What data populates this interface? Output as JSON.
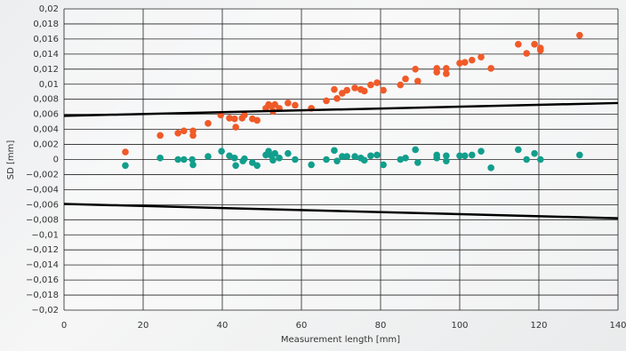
{
  "chart_data": {
    "type": "scatter",
    "xlabel": "Measurement length [mm]",
    "ylabel": "SD [mm]",
    "xlim": [
      0,
      140
    ],
    "xticks": [
      0,
      20,
      40,
      60,
      80,
      100,
      120,
      140
    ],
    "ylim": [
      -0.02,
      0.02
    ],
    "yticks": [
      {
        "value": 0.02,
        "label": "0,02"
      },
      {
        "value": 0.018,
        "label": "0,018"
      },
      {
        "value": 0.016,
        "label": "0,016"
      },
      {
        "value": 0.014,
        "label": "0,014"
      },
      {
        "value": 0.012,
        "label": "0,012"
      },
      {
        "value": 0.01,
        "label": "0,01"
      },
      {
        "value": 0.008,
        "label": "0,008"
      },
      {
        "value": 0.006,
        "label": "0,006"
      },
      {
        "value": 0.004,
        "label": "0,004"
      },
      {
        "value": 0.002,
        "label": "0,002"
      },
      0,
      {
        "value": -0.002,
        "label": "−0,002"
      },
      {
        "value": -0.004,
        "label": "−0,004"
      },
      {
        "value": -0.006,
        "label": "−0,006"
      },
      {
        "value": -0.008,
        "label": "−0,008"
      },
      {
        "value": -0.01,
        "label": "−0,01"
      },
      {
        "value": -0.012,
        "label": "−0,012"
      },
      {
        "value": -0.014,
        "label": "−0,014"
      },
      {
        "value": -0.016,
        "label": "−0,016"
      },
      {
        "value": -0.018,
        "label": "−0,018"
      },
      {
        "value": -0.02,
        "label": "−0,02"
      }
    ],
    "grid": true,
    "series": [
      {
        "color": "#f05a28",
        "style": "points",
        "x": [
          15.5,
          24.3,
          28.8,
          30.3,
          32.6,
          32.6,
          36.4,
          39.6,
          41.8,
          43.1,
          43.4,
          45,
          45.6,
          47.6,
          48.8,
          51,
          51.7,
          52.4,
          52.8,
          53.3,
          54.4,
          56.6,
          58.4,
          62.5,
          66.3,
          68.3,
          69,
          70.3,
          71.5,
          73.5,
          75,
          75.9,
          77.5,
          79.1,
          80.7,
          85,
          86.3,
          88.8,
          89.4,
          94.2,
          94.2,
          96.6,
          96.6,
          100,
          101.3,
          103.1,
          105.4,
          107.9,
          114.8,
          116.9,
          118.9,
          120.4,
          120.4,
          130.3
        ],
        "values": [
          0.001,
          0.0032,
          0.0035,
          0.0038,
          0.0038,
          0.0032,
          0.0048,
          0.0059,
          0.0055,
          0.0054,
          0.0043,
          0.0055,
          0.0059,
          0.0054,
          0.0052,
          0.0068,
          0.0073,
          0.0071,
          0.0064,
          0.0073,
          0.0068,
          0.0075,
          0.0072,
          0.0068,
          0.0078,
          0.0093,
          0.0081,
          0.0088,
          0.0092,
          0.0095,
          0.0093,
          0.0091,
          0.0099,
          0.0102,
          0.0092,
          0.0099,
          0.0107,
          0.012,
          0.0104,
          0.0121,
          0.0116,
          0.0121,
          0.0114,
          0.0128,
          0.0129,
          0.0132,
          0.0136,
          0.0121,
          0.0153,
          0.0141,
          0.0153,
          0.0148,
          0.0145,
          0.0165
        ]
      },
      {
        "color": "#129e8c",
        "style": "points",
        "x": [
          15.5,
          24.3,
          28.8,
          30.3,
          32.4,
          32.6,
          36.4,
          39.8,
          41.8,
          43.1,
          43.4,
          45.2,
          45.6,
          47.6,
          48.8,
          51,
          51.7,
          52.4,
          52.8,
          53.3,
          54.4,
          56.6,
          58.4,
          62.5,
          66.3,
          68.3,
          69,
          70.3,
          71.5,
          73.5,
          75,
          75.9,
          77.5,
          79.1,
          80.7,
          85,
          86.3,
          88.8,
          89.4,
          94.2,
          94.2,
          96.6,
          96.6,
          100,
          101.3,
          103.1,
          105.4,
          107.9,
          114.8,
          116.9,
          118.9,
          120.4,
          130.3
        ],
        "values": [
          -0.0008,
          0.0002,
          0,
          0,
          0,
          -0.0007,
          0.0004,
          0.0011,
          0.0005,
          0.0002,
          -0.0008,
          -0.0002,
          0.0001,
          -0.0004,
          -0.0008,
          0.0006,
          0.0011,
          0.0005,
          -0.0001,
          0.0008,
          0.0002,
          0.0008,
          0,
          -0.0007,
          0,
          0.0012,
          -0.0002,
          0.0004,
          0.0004,
          0.0004,
          0.0002,
          -0.0001,
          0.0005,
          0.0006,
          -0.0007,
          0,
          0.0002,
          0.0013,
          -0.0004,
          0.0006,
          0.0002,
          0.0005,
          -0.0002,
          0.0005,
          0.0005,
          0.0006,
          0.0011,
          -0.0011,
          0.0013,
          0,
          0.0008,
          0,
          0.0006
        ]
      },
      {
        "color": "#000000",
        "style": "line",
        "x": [
          0,
          140
        ],
        "values": [
          0.0058,
          0.0075
        ]
      },
      {
        "color": "#000000",
        "style": "line",
        "x": [
          0,
          140
        ],
        "values": [
          -0.0059,
          -0.0078
        ]
      }
    ]
  }
}
